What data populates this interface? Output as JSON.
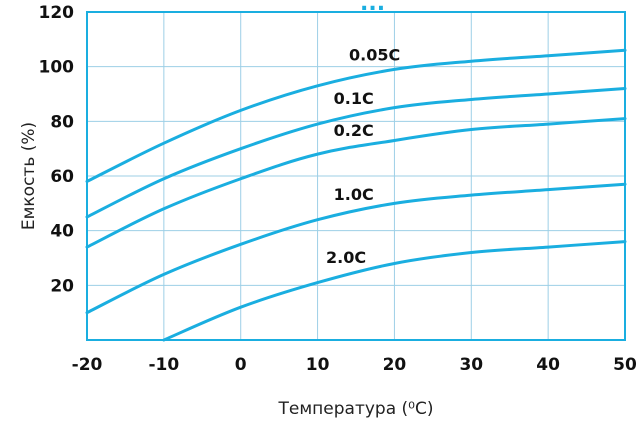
{
  "chart_data": {
    "type": "line",
    "title": "",
    "xlabel": "Температура (⁰C)",
    "ylabel": "Емкость (%)",
    "xlim": [
      -20,
      50
    ],
    "ylim": [
      0,
      120
    ],
    "x_ticks": [
      "-20",
      "-10",
      "0",
      "10",
      "20",
      "30",
      "40",
      "50"
    ],
    "y_ticks": [
      "20",
      "40",
      "60",
      "80",
      "100",
      "120"
    ],
    "grid": true,
    "legend": "inline",
    "line_color": "#1aaee0",
    "grid_color": "#9dcfe6",
    "series": [
      {
        "name": "0.05C",
        "x": [
          -20,
          -10,
          0,
          10,
          20,
          30,
          40,
          50
        ],
        "values": [
          58,
          72,
          84,
          93,
          99,
          102,
          104,
          106
        ]
      },
      {
        "name": "0.1C",
        "x": [
          -20,
          -10,
          0,
          10,
          20,
          30,
          40,
          50
        ],
        "values": [
          45,
          59,
          70,
          79,
          85,
          88,
          90,
          92
        ]
      },
      {
        "name": "0.2C",
        "x": [
          -20,
          -10,
          0,
          10,
          20,
          30,
          40,
          50
        ],
        "values": [
          34,
          48,
          59,
          68,
          73,
          77,
          79,
          81
        ]
      },
      {
        "name": "1.0C",
        "x": [
          -20,
          -10,
          0,
          10,
          20,
          30,
          40,
          50
        ],
        "values": [
          10,
          24,
          35,
          44,
          50,
          53,
          55,
          57
        ]
      },
      {
        "name": "2.0C",
        "x": [
          -10,
          0,
          10,
          20,
          30,
          40,
          50
        ],
        "values": [
          0,
          12,
          21,
          28,
          32,
          34,
          36
        ]
      }
    ],
    "curve_labels": [
      "0.05C",
      "0.1C",
      "0.2C",
      "1.0C",
      "2.0C"
    ]
  }
}
